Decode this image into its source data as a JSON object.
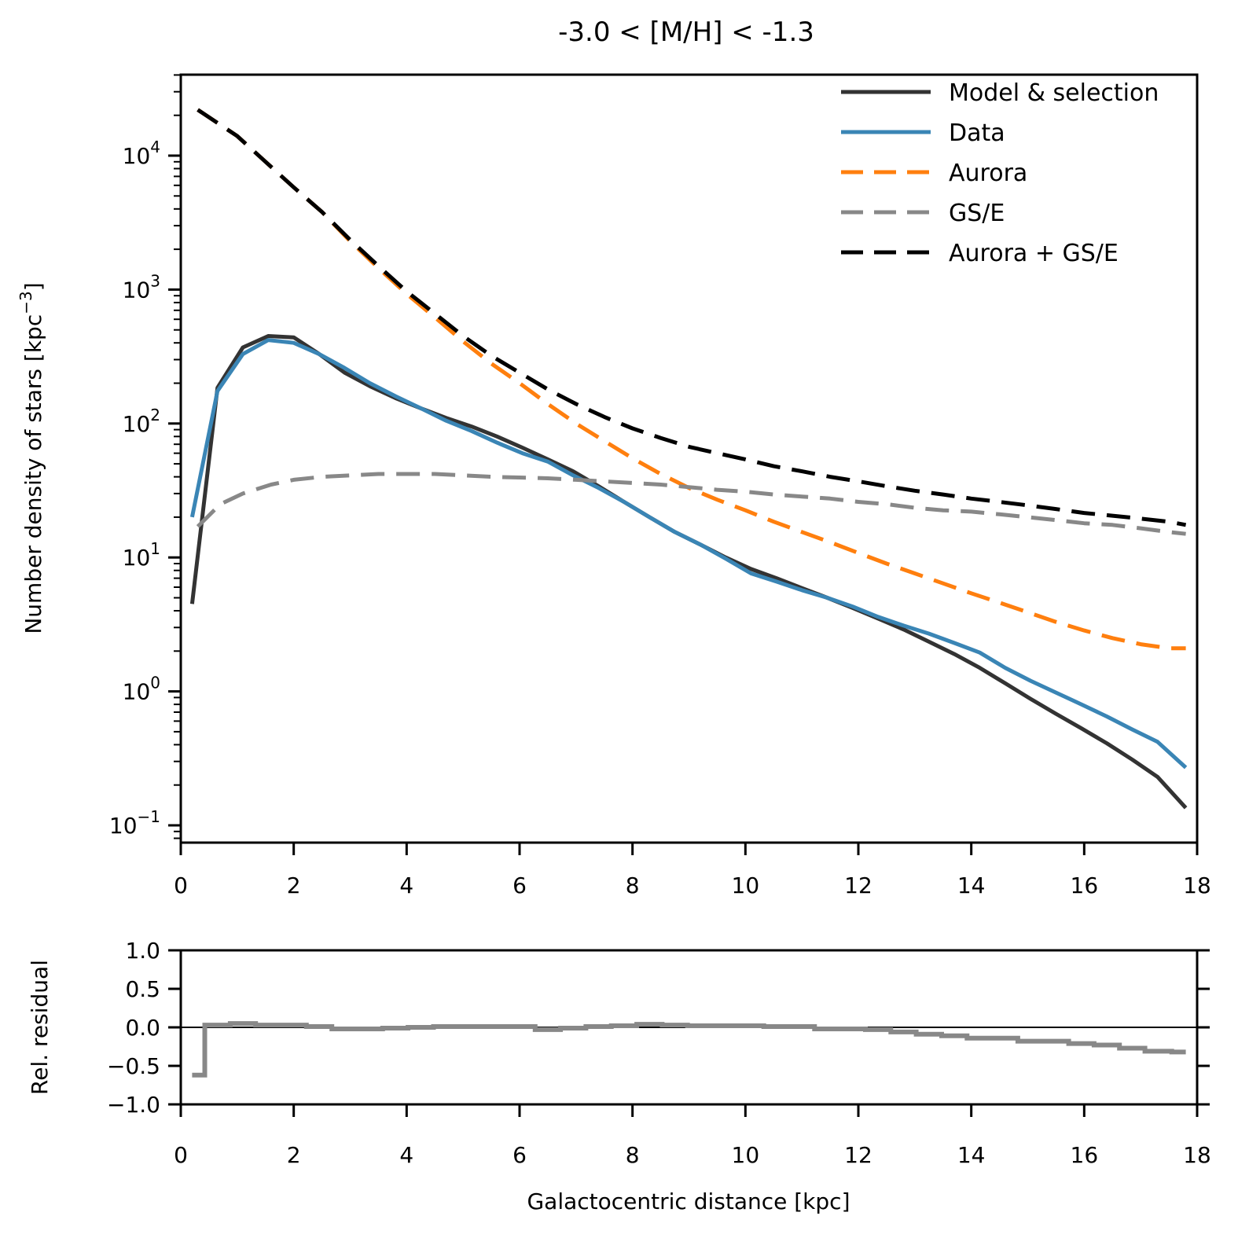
{
  "chart_data": [
    {
      "type": "line",
      "title": "-3.0 < [M/H] < -1.3",
      "xlabel": "",
      "ylabel": "Number density of stars [kpc$^{-3}$]",
      "ylabel_text": "Number density of stars [kpc",
      "ylabel_sup": "−3",
      "ylabel_close": "]",
      "yscale": "log",
      "xlim": [
        0,
        18
      ],
      "ylim": [
        0.08,
        40000
      ],
      "x_ticks": [
        "0",
        "2",
        "4",
        "6",
        "8",
        "10",
        "12",
        "14",
        "16",
        "18"
      ],
      "y_ticks": [
        {
          "base": "10",
          "exp": "−1",
          "value": 0.1
        },
        {
          "base": "10",
          "exp": "0",
          "value": 1
        },
        {
          "base": "10",
          "exp": "1",
          "value": 10
        },
        {
          "base": "10",
          "exp": "2",
          "value": 100
        },
        {
          "base": "10",
          "exp": "3",
          "value": 1000
        },
        {
          "base": "10",
          "exp": "4",
          "value": 10000
        }
      ],
      "legend_position": "top-right",
      "series": [
        {
          "name": "Model & selection",
          "color": "#333333",
          "style": "solid",
          "x": [
            0.2,
            0.65,
            1.1,
            1.55,
            2.0,
            2.45,
            2.9,
            3.35,
            3.8,
            4.25,
            4.7,
            5.15,
            5.6,
            6.05,
            6.5,
            6.95,
            7.4,
            7.85,
            8.3,
            8.75,
            9.2,
            9.65,
            10.1,
            10.55,
            11.0,
            11.45,
            11.9,
            12.35,
            12.8,
            13.25,
            13.7,
            14.15,
            14.6,
            15.05,
            15.5,
            15.95,
            16.4,
            16.85,
            17.3,
            17.8
          ],
          "y": [
            4.5,
            185,
            370,
            450,
            440,
            330,
            240,
            190,
            155,
            130,
            110,
            95,
            80,
            66,
            54,
            44,
            34,
            26,
            20,
            15.5,
            12.5,
            10,
            8.2,
            7.0,
            5.9,
            5.0,
            4.2,
            3.5,
            2.9,
            2.35,
            1.9,
            1.5,
            1.15,
            0.88,
            0.68,
            0.53,
            0.41,
            0.31,
            0.23,
            0.135
          ]
        },
        {
          "name": "Data",
          "color": "#3a85b5",
          "style": "solid",
          "x": [
            0.2,
            0.65,
            1.1,
            1.55,
            2.0,
            2.45,
            2.9,
            3.35,
            3.8,
            4.25,
            4.7,
            5.15,
            5.6,
            6.05,
            6.5,
            6.95,
            7.4,
            7.85,
            8.3,
            8.75,
            9.2,
            9.65,
            10.1,
            10.55,
            11.0,
            11.45,
            11.9,
            12.35,
            12.8,
            13.25,
            13.7,
            14.15,
            14.6,
            15.05,
            15.5,
            15.95,
            16.4,
            16.85,
            17.3,
            17.8
          ],
          "y": [
            20,
            175,
            330,
            420,
            400,
            330,
            260,
            200,
            160,
            130,
            105,
            88,
            72,
            60,
            52,
            41,
            33,
            26,
            20,
            15.5,
            12.5,
            9.8,
            7.6,
            6.6,
            5.7,
            5.0,
            4.3,
            3.6,
            3.1,
            2.7,
            2.3,
            1.95,
            1.5,
            1.2,
            0.98,
            0.8,
            0.65,
            0.52,
            0.42,
            0.27
          ]
        },
        {
          "name": "Aurora",
          "color": "#ff7f0e",
          "style": "dashed",
          "x": [
            0.3,
            1.0,
            1.5,
            2.0,
            2.5,
            3.0,
            3.5,
            4.0,
            4.5,
            5.0,
            5.5,
            6.0,
            6.5,
            7.0,
            7.5,
            8.0,
            8.5,
            9.0,
            9.5,
            10.0,
            10.5,
            11.0,
            11.5,
            12.0,
            12.5,
            13.0,
            13.5,
            14.0,
            14.5,
            15.0,
            15.5,
            16.0,
            16.5,
            17.0,
            17.5,
            17.8
          ],
          "y": [
            22000,
            14000,
            9000,
            5800,
            3800,
            2300,
            1450,
            930,
            620,
            410,
            280,
            200,
            140,
            100,
            74,
            55,
            42,
            33,
            27,
            22.5,
            18.5,
            15.5,
            13,
            10.8,
            9.0,
            7.6,
            6.4,
            5.4,
            4.6,
            3.9,
            3.3,
            2.85,
            2.5,
            2.25,
            2.1,
            2.1
          ]
        },
        {
          "name": "GS/E",
          "color": "#888888",
          "style": "dashed",
          "x": [
            0.3,
            0.7,
            1.1,
            1.6,
            2.0,
            2.5,
            3.0,
            3.5,
            4.0,
            4.5,
            5.0,
            5.5,
            6.0,
            6.5,
            7.0,
            7.5,
            8.0,
            8.5,
            9.0,
            9.5,
            10.0,
            10.5,
            11.0,
            11.5,
            12.0,
            12.5,
            13.0,
            13.5,
            14.0,
            14.5,
            15.0,
            15.5,
            16.0,
            16.5,
            17.0,
            17.5,
            17.8
          ],
          "y": [
            17,
            25,
            30,
            35,
            38,
            40,
            41,
            42,
            42,
            42,
            41,
            40,
            39.5,
            39,
            38,
            37,
            36,
            35,
            33.5,
            32,
            31,
            29.5,
            28.5,
            27.5,
            26,
            25,
            23.5,
            22.5,
            22,
            21,
            20,
            19,
            18,
            17.5,
            16.5,
            15.5,
            15
          ]
        },
        {
          "name": "Aurora + GS/E",
          "color": "#000000",
          "style": "dashed",
          "x": [
            0.3,
            1.0,
            1.5,
            2.0,
            2.5,
            3.0,
            3.5,
            4.0,
            4.5,
            5.0,
            5.5,
            6.0,
            6.5,
            7.0,
            7.5,
            8.0,
            8.5,
            9.0,
            9.5,
            10.0,
            10.5,
            11.0,
            11.5,
            12.0,
            12.5,
            13.0,
            13.5,
            14.0,
            14.5,
            15.0,
            15.5,
            16.0,
            16.5,
            17.0,
            17.5,
            17.8
          ],
          "y": [
            22000,
            14000,
            9000,
            5800,
            3800,
            2350,
            1500,
            970,
            660,
            450,
            320,
            240,
            180,
            140,
            112,
            92,
            78,
            67,
            60,
            54,
            48,
            44,
            40,
            37,
            34,
            31.5,
            29.5,
            27.5,
            26,
            24.5,
            23,
            21.5,
            20.5,
            19.5,
            18.5,
            17.5
          ]
        }
      ]
    },
    {
      "type": "line",
      "title": "",
      "xlabel": "Galactocentric distance [kpc]",
      "ylabel": "Rel. residual",
      "xlim": [
        0,
        18
      ],
      "ylim": [
        -1.0,
        1.0
      ],
      "x_ticks": [
        "0",
        "2",
        "4",
        "6",
        "8",
        "10",
        "12",
        "14",
        "16",
        "18"
      ],
      "y_ticks": [
        "−1.0",
        "−0.5",
        "0.0",
        "0.5",
        "1.0"
      ],
      "y_tick_values": [
        -1.0,
        -0.5,
        0.0,
        0.5,
        1.0
      ],
      "zero_line": true,
      "series": [
        {
          "name": "",
          "color": "#888888",
          "style": "steps-mid",
          "x": [
            0.2,
            0.65,
            1.1,
            1.55,
            2.0,
            2.45,
            2.9,
            3.35,
            3.8,
            4.25,
            4.7,
            5.15,
            5.6,
            6.05,
            6.5,
            6.95,
            7.4,
            7.85,
            8.3,
            8.75,
            9.2,
            9.65,
            10.1,
            10.55,
            11.0,
            11.45,
            11.9,
            12.35,
            12.8,
            13.25,
            13.7,
            14.15,
            14.6,
            15.05,
            15.5,
            15.95,
            16.4,
            16.85,
            17.3,
            17.8
          ],
          "y": [
            -0.62,
            0.03,
            0.05,
            0.03,
            0.03,
            0.01,
            -0.02,
            -0.02,
            -0.01,
            0.0,
            0.01,
            0.01,
            0.01,
            0.01,
            -0.03,
            -0.01,
            0.01,
            0.02,
            0.04,
            0.03,
            0.02,
            0.02,
            0.02,
            0.01,
            0.01,
            -0.02,
            -0.02,
            -0.03,
            -0.06,
            -0.09,
            -0.11,
            -0.14,
            -0.14,
            -0.18,
            -0.18,
            -0.21,
            -0.23,
            -0.27,
            -0.31,
            -0.32
          ]
        }
      ]
    }
  ]
}
